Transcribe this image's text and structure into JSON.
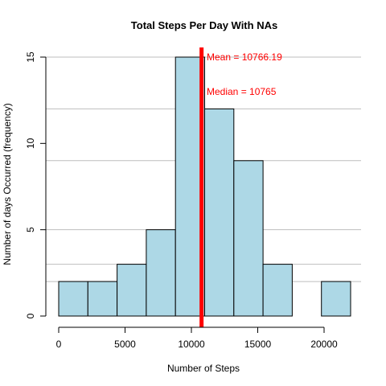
{
  "chart_data": {
    "type": "bar",
    "title": "Total Steps Per Day With NAs",
    "xlabel": "Number of Steps",
    "ylabel": "Number of days Occurred (frequency)",
    "bin_edges": [
      0,
      2200,
      4400,
      6600,
      8800,
      11000,
      13200,
      15400,
      17600,
      19800,
      22000
    ],
    "counts": [
      2,
      2,
      3,
      5,
      15,
      12,
      9,
      3,
      0,
      2
    ],
    "xlim": [
      0,
      22000
    ],
    "ylim": [
      0,
      15
    ],
    "x_ticks": [
      0,
      5000,
      10000,
      15000,
      20000
    ],
    "y_ticks": [
      0,
      5,
      10,
      15
    ],
    "bar_color": "#add8e6",
    "grid": true,
    "grid_color": "#bebebe",
    "gridlines_y": [
      2,
      3,
      5,
      9,
      12,
      15
    ],
    "mean_line": {
      "value": 10766.19,
      "color": "#ff0000"
    },
    "annotations": [
      {
        "text": "Mean =  10766.19",
        "color": "#ff0000"
      },
      {
        "text": "Median =  10765",
        "color": "#ff0000"
      }
    ]
  }
}
